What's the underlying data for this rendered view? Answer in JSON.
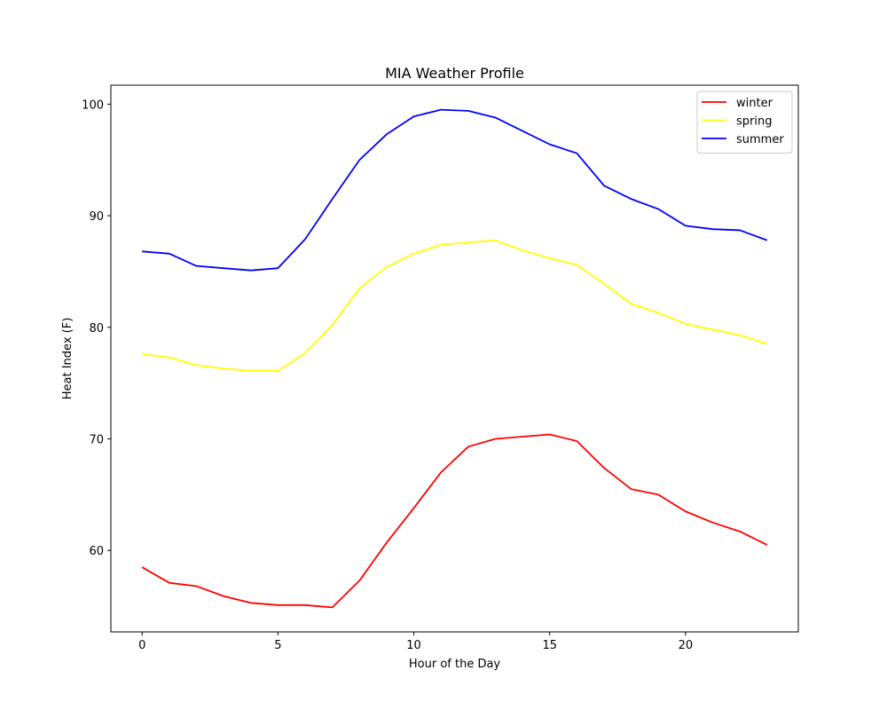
{
  "chart_data": {
    "type": "line",
    "title": "MIA Weather Profile",
    "xlabel": "Hour of the Day",
    "ylabel": "Heat Index (F)",
    "x": [
      0,
      1,
      2,
      3,
      4,
      5,
      6,
      7,
      8,
      9,
      10,
      11,
      12,
      13,
      14,
      15,
      16,
      17,
      18,
      19,
      20,
      21,
      22,
      23
    ],
    "xlim": [
      -1.15,
      24.15
    ],
    "ylim": [
      52.7,
      101.7
    ],
    "xticks": [
      0,
      5,
      10,
      15,
      20
    ],
    "yticks": [
      60,
      70,
      80,
      90,
      100
    ],
    "grid": false,
    "legend_position": "upper right",
    "series": [
      {
        "name": "winter",
        "color": "#ff0000",
        "values": [
          58.5,
          57.1,
          56.8,
          55.9,
          55.3,
          55.1,
          55.1,
          54.9,
          57.3,
          60.7,
          63.8,
          67.0,
          69.3,
          70.0,
          70.2,
          70.4,
          69.8,
          67.4,
          65.5,
          65.0,
          63.5,
          62.5,
          61.7,
          60.5
        ]
      },
      {
        "name": "spring",
        "color": "#ffff00",
        "values": [
          77.6,
          77.3,
          76.6,
          76.3,
          76.1,
          76.1,
          77.7,
          80.2,
          83.5,
          85.4,
          86.6,
          87.4,
          87.6,
          87.8,
          86.9,
          86.2,
          85.6,
          83.9,
          82.1,
          81.3,
          80.3,
          79.8,
          79.3,
          78.5
        ]
      },
      {
        "name": "summer",
        "color": "#0000ff",
        "values": [
          86.8,
          86.6,
          85.5,
          85.3,
          85.1,
          85.3,
          87.9,
          91.5,
          95.0,
          97.3,
          98.9,
          99.5,
          99.4,
          98.8,
          97.6,
          96.4,
          95.6,
          92.7,
          91.5,
          90.6,
          89.1,
          88.8,
          88.7,
          87.8
        ]
      }
    ]
  }
}
